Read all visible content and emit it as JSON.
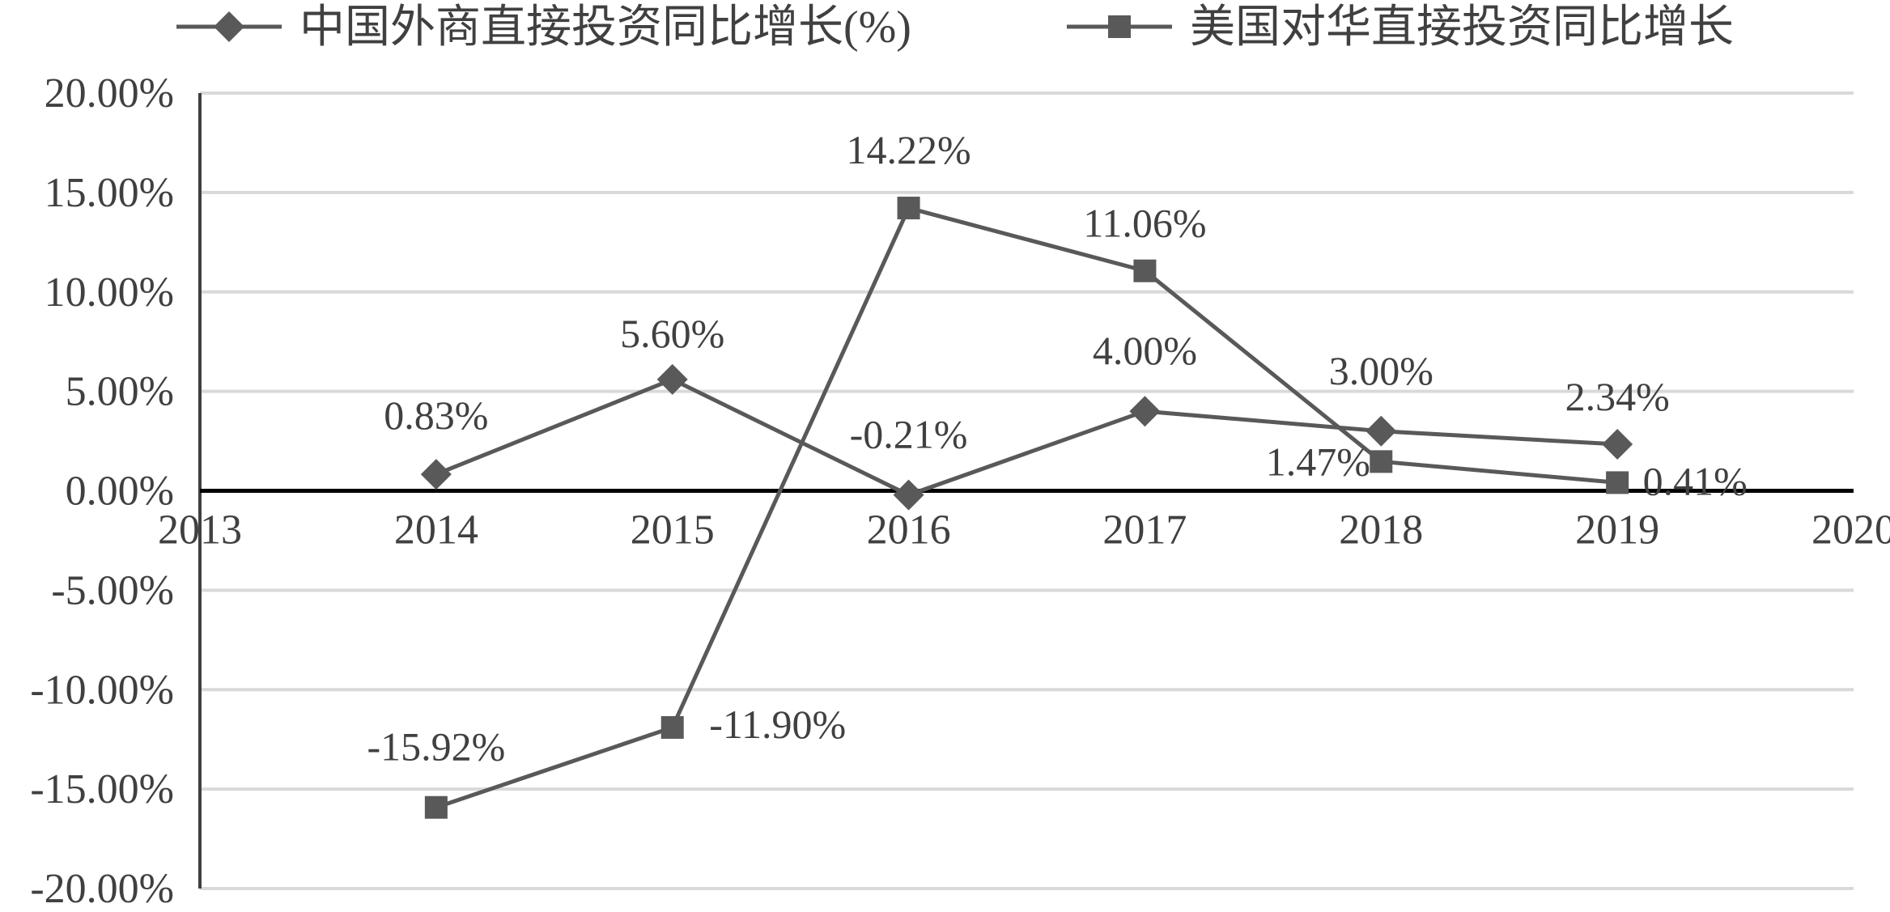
{
  "chart_data": {
    "type": "line",
    "x": [
      2014,
      2015,
      2016,
      2017,
      2018,
      2019
    ],
    "xlim": [
      2013,
      2020
    ],
    "xticks": [
      "2013",
      "2014",
      "2015",
      "2016",
      "2017",
      "2018",
      "2019",
      "2020"
    ],
    "ylim": [
      -20,
      20
    ],
    "yticks": [
      "20.00%",
      "15.00%",
      "10.00%",
      "5.00%",
      "0.00%",
      "-5.00%",
      "-10.00%",
      "-15.00%",
      "-20.00%"
    ],
    "grid": true,
    "legend_position": "top",
    "series": [
      {
        "name": "中国外商直接投资同比增长(%)",
        "marker": "diamond",
        "color": "#595959",
        "values": [
          0.83,
          5.6,
          -0.21,
          4.0,
          3.0,
          2.34
        ],
        "labels": [
          "0.83%",
          "5.60%",
          "-0.21%",
          "4.00%",
          "3.00%",
          "2.34%"
        ]
      },
      {
        "name": "美国对华直接投资同比增长",
        "marker": "square",
        "color": "#595959",
        "values": [
          -15.92,
          -11.9,
          14.22,
          11.06,
          1.47,
          0.41
        ],
        "labels": [
          "-15.92%",
          "-11.90%",
          "14.22%",
          "11.06%",
          "1.47%",
          "0.41%"
        ]
      }
    ]
  }
}
